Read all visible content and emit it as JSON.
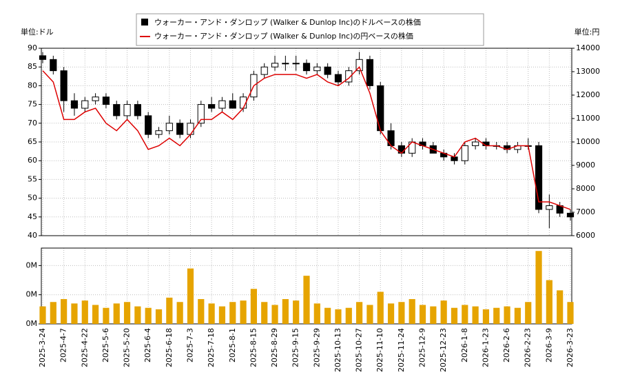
{
  "chart_data": {
    "type": "candlestick",
    "legend": [
      "ウォーカー・アンド・ダンロップ (Walker & Dunlop Inc)のドルベースの株価",
      "ウォーカー・アンド・ダンロップ (Walker & Dunlop Inc)の円ベースの株価"
    ],
    "y_unit": "単位:ドル",
    "y2_unit": "単位:円",
    "categories": [
      "2025-3-24",
      null,
      "2025-4-7",
      null,
      "2025-4-22",
      null,
      "2025-5-6",
      null,
      "2025-5-20",
      null,
      "2025-6-4",
      null,
      "2025-6-18",
      null,
      "2025-7-3",
      null,
      "2025-7-18",
      null,
      "2025-8-1",
      null,
      "2025-8-15",
      null,
      "2025-8-29",
      null,
      "2025-9-15",
      null,
      "2025-9-29",
      null,
      "2025-10-13",
      null,
      "2025-10-27",
      null,
      "2025-11-10",
      null,
      "2025-11-24",
      null,
      "2025-12-9",
      null,
      "2025-12-23",
      null,
      "2026-1-8",
      null,
      "2026-1-23",
      null,
      "2026-2-6",
      null,
      "2026-2-23",
      null,
      "2026-3-9",
      null,
      "2026-3-23"
    ],
    "open": [
      88,
      87,
      84,
      76,
      74,
      76,
      77,
      75,
      72,
      75,
      72,
      67,
      68,
      70,
      67,
      70,
      75,
      74,
      76,
      74,
      77,
      83,
      85,
      86,
      86,
      86,
      84,
      85,
      83,
      81,
      84,
      87,
      80,
      68,
      64,
      62,
      65,
      64,
      62,
      61,
      60,
      64,
      65,
      64,
      64,
      63,
      64,
      64,
      47,
      48,
      46
    ],
    "high": [
      89,
      88,
      85,
      78,
      77,
      78,
      78,
      76,
      76,
      76,
      73,
      69,
      72,
      71,
      71,
      76,
      77,
      77,
      78,
      78,
      84,
      86,
      88,
      88,
      88,
      87,
      86,
      86,
      84,
      85,
      89,
      88,
      81,
      70,
      65,
      66,
      66,
      65,
      63,
      62,
      65,
      66,
      66,
      65,
      65,
      65,
      66,
      65,
      51,
      49,
      47
    ],
    "low": [
      86,
      83,
      73,
      72,
      73,
      75,
      74,
      71,
      71,
      71,
      66,
      66,
      67,
      66,
      66,
      69,
      73,
      73,
      74,
      73,
      76,
      82,
      84,
      84,
      84,
      83,
      83,
      82,
      80,
      80,
      83,
      79,
      67,
      63,
      61,
      61,
      63,
      62,
      60,
      59,
      59,
      63,
      63,
      63,
      62,
      62,
      63,
      46,
      42,
      45,
      44
    ],
    "close": [
      87,
      84,
      76,
      74,
      76,
      77,
      75,
      72,
      75,
      72,
      67,
      68,
      70,
      67,
      70,
      75,
      74,
      76,
      74,
      77,
      83,
      85,
      86,
      86,
      86,
      84,
      85,
      83,
      81,
      84,
      87,
      80,
      68,
      64,
      62,
      65,
      64,
      62,
      61,
      60,
      64,
      65,
      64,
      64,
      63,
      64,
      64,
      47,
      48,
      46,
      45
    ],
    "up_color": "#ffffff",
    "down_color": "#000000",
    "yen": {
      "color": "#dd0000",
      "values": [
        13040,
        12560,
        10960,
        10960,
        11280,
        11440,
        10800,
        10480,
        10960,
        10480,
        9680,
        9840,
        10160,
        9840,
        10320,
        10960,
        10960,
        11280,
        10960,
        11440,
        12400,
        12720,
        12880,
        12880,
        12880,
        12720,
        12880,
        12560,
        12400,
        12720,
        13200,
        12080,
        10480,
        9840,
        9520,
        10000,
        9840,
        9680,
        9520,
        9360,
        10000,
        10160,
        9840,
        9840,
        9680,
        9840,
        9840,
        7440,
        7440,
        7280,
        7120
      ]
    },
    "volume": {
      "color": "#e6a400",
      "values": [
        120000,
        150000,
        170000,
        140000,
        160000,
        130000,
        110000,
        140000,
        150000,
        120000,
        110000,
        100000,
        180000,
        150000,
        380000,
        170000,
        140000,
        120000,
        150000,
        160000,
        240000,
        150000,
        130000,
        170000,
        160000,
        330000,
        140000,
        110000,
        100000,
        110000,
        150000,
        130000,
        220000,
        140000,
        150000,
        170000,
        130000,
        120000,
        160000,
        110000,
        130000,
        120000,
        100000,
        110000,
        120000,
        110000,
        150000,
        500000,
        300000,
        230000,
        150000
      ]
    },
    "ylim": [
      40,
      90
    ],
    "yticks": [
      40,
      45,
      50,
      55,
      60,
      65,
      70,
      75,
      80,
      85,
      90
    ],
    "y2lim": [
      6000,
      14000
    ],
    "y2ticks": [
      6000,
      7000,
      8000,
      9000,
      10000,
      11000,
      12000,
      13000,
      14000
    ],
    "vlim": [
      0,
      520000
    ],
    "vticks": [
      {
        "value": 0,
        "label": "0M"
      },
      {
        "value": 200000,
        "label": "0M"
      },
      {
        "value": 400000,
        "label": "0M"
      }
    ],
    "grid": true
  }
}
